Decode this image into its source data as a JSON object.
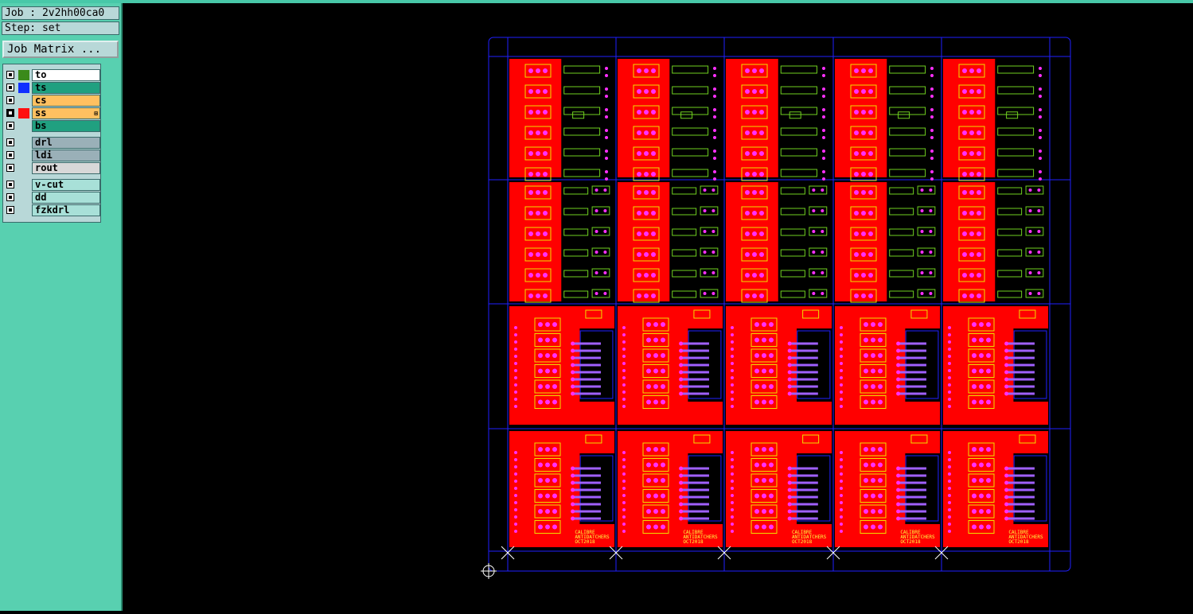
{
  "sidebar": {
    "job_label": "Job : 2v2hh00ca0",
    "step_label": "Step: set",
    "job_matrix_button": "Job Matrix ..."
  },
  "layers": [
    {
      "name": "to",
      "swatch": "#3a8a1a",
      "bg": "#ffffff"
    },
    {
      "name": "ts",
      "swatch": "#1030ff",
      "bg": "#20a080"
    },
    {
      "name": "cs",
      "swatch": "",
      "bg": "#ffc060"
    },
    {
      "name": "ss",
      "swatch": "#ff1010",
      "bg": "#ffc060",
      "selected": true,
      "mark": "⊞"
    },
    {
      "name": "bs",
      "swatch": "",
      "bg": "#20a080"
    },
    {
      "name": "drl",
      "swatch": "",
      "bg": "#9ab0b8"
    },
    {
      "name": "ldi",
      "swatch": "",
      "bg": "#9ab0b8"
    },
    {
      "name": "rout",
      "swatch": "",
      "bg": "#d8d8d8"
    },
    {
      "name": "v-cut",
      "swatch": "",
      "bg": "#a8e0d8"
    },
    {
      "name": "dd",
      "swatch": "",
      "bg": "#a8e0d8"
    },
    {
      "name": "fzkdrl",
      "swatch": "",
      "bg": "#a8e0d8"
    }
  ],
  "board": {
    "rows": 4,
    "cols": 5,
    "row_types": [
      "A",
      "B",
      "C",
      "D"
    ],
    "colors": {
      "panel": "#ff0000",
      "pad": "#ff30ff",
      "outline": "#f0e000",
      "silk": "#70d020",
      "frame": "#2020ff",
      "connector": "#a060ff",
      "text": "#ffff40"
    },
    "silk_text_lines": [
      "CALIBRE",
      "ANTIDATCHERS",
      "OCT2018"
    ]
  }
}
